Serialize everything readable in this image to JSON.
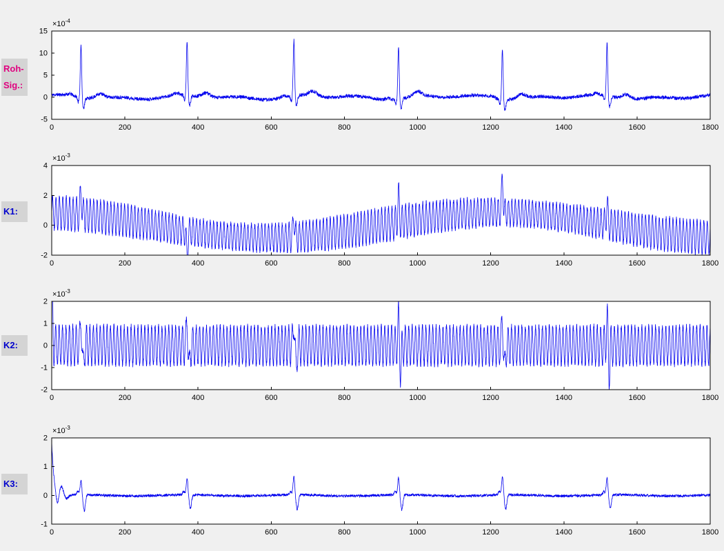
{
  "figure": {
    "background": "#f0f0f0",
    "plot_background": "#ffffff",
    "axis_color": "#000000",
    "trace_color": "#0000ee",
    "label_box_background": "#d4d4d4"
  },
  "side_labels": [
    {
      "id": "roh-sig",
      "lines": [
        "Roh-",
        "Sig.:"
      ],
      "color": "#e0007f"
    },
    {
      "id": "k1",
      "lines": [
        "K1:"
      ],
      "color": "#0000cd"
    },
    {
      "id": "k2",
      "lines": [
        "K2:"
      ],
      "color": "#0000cd"
    },
    {
      "id": "k3",
      "lines": [
        "K3:"
      ],
      "color": "#0000cd"
    }
  ],
  "chart_data": [
    {
      "type": "line",
      "id": "roh-sig",
      "row_label": "Roh-Sig.:",
      "description": "Raw ECG signal with QRS spikes at regular beats",
      "y_scale_label": {
        "prefix": "×10",
        "exponent": "-4"
      },
      "xlim": [
        0,
        1800
      ],
      "ylim": [
        -5,
        15
      ],
      "xticks": [
        0,
        200,
        400,
        600,
        800,
        1000,
        1200,
        1400,
        1600,
        1800
      ],
      "yticks": [
        -5,
        0,
        5,
        10,
        15
      ],
      "samples": 3600,
      "seed": 11,
      "signal": {
        "kind": "ecg",
        "beats": [
          80,
          370,
          662,
          948,
          1232,
          1518
        ],
        "r_amps": [
          12.1,
          12.4,
          12.8,
          11.6,
          11.3,
          12.2
        ],
        "q_amp": -1.1,
        "s_amp": -2.3,
        "t_amp": 1.05,
        "p_amp": 0.4,
        "noise": 0.8
      }
    },
    {
      "type": "line",
      "id": "k1",
      "row_label": "K1:",
      "description": "Dense 50Hz-like oscillation with slow sinusoidal baseline wander and ECG spike residuals",
      "y_scale_label": {
        "prefix": "×10",
        "exponent": "-3"
      },
      "xlim": [
        0,
        1800
      ],
      "ylim": [
        -2,
        4
      ],
      "xticks": [
        0,
        200,
        400,
        600,
        800,
        1000,
        1200,
        1400,
        1600,
        1800
      ],
      "yticks": [
        -2,
        0,
        2,
        4
      ],
      "samples": 5400,
      "seed": 22,
      "signal": {
        "kind": "osc_drift",
        "beats": [
          80,
          370,
          662,
          948,
          1232,
          1518
        ],
        "spike_amps": [
          1.5,
          -1.6,
          1.4,
          1.6,
          2.2,
          1.3
        ],
        "drift_amp": 0.85,
        "drift_center": 1215,
        "drift_period": 1250,
        "hf_amp": 1.0,
        "hf_period": 9.37,
        "noise": 0.25
      }
    },
    {
      "type": "line",
      "id": "k2",
      "row_label": "K2:",
      "description": "Dense zero-centered oscillation with ECG spike residuals and initial transient",
      "y_scale_label": {
        "prefix": "×10",
        "exponent": "-3"
      },
      "xlim": [
        0,
        1800
      ],
      "ylim": [
        -2,
        2
      ],
      "xticks": [
        0,
        200,
        400,
        600,
        800,
        1000,
        1200,
        1400,
        1600,
        1800
      ],
      "yticks": [
        -2,
        -1,
        0,
        1,
        2
      ],
      "samples": 5400,
      "seed": 33,
      "signal": {
        "kind": "osc",
        "beats": [
          80,
          370,
          662,
          948,
          1232,
          1518
        ],
        "spike_up": [
          1.2,
          1.15,
          1.25,
          1.1,
          1.25,
          1.15
        ],
        "spike_dn": [
          -1.15,
          -1.2,
          -1.1,
          -1.15,
          -1.25,
          -1.1
        ],
        "init_amp": 2.0,
        "hf_amp": 0.88,
        "hf_period": 9.37,
        "noise": 0.22
      }
    },
    {
      "type": "line",
      "id": "k3",
      "row_label": "K3:",
      "description": "Near-flat residual with biphasic spikes at each beat and large decaying transient at x=0",
      "y_scale_label": {
        "prefix": "×10",
        "exponent": "-3"
      },
      "xlim": [
        0,
        1800
      ],
      "ylim": [
        -1,
        2
      ],
      "xticks": [
        0,
        200,
        400,
        600,
        800,
        1000,
        1200,
        1400,
        1600,
        1800
      ],
      "yticks": [
        -1,
        0,
        1,
        2
      ],
      "samples": 3600,
      "seed": 44,
      "signal": {
        "kind": "residual",
        "beats": [
          80,
          370,
          662,
          948,
          1232,
          1518
        ],
        "spike_up": [
          0.5,
          0.58,
          0.62,
          0.6,
          0.62,
          0.58
        ],
        "spike_dn": [
          -0.55,
          -0.48,
          -0.5,
          -0.52,
          -0.5,
          -0.46
        ],
        "init_amp": 1.85,
        "noise": 0.09
      }
    }
  ]
}
